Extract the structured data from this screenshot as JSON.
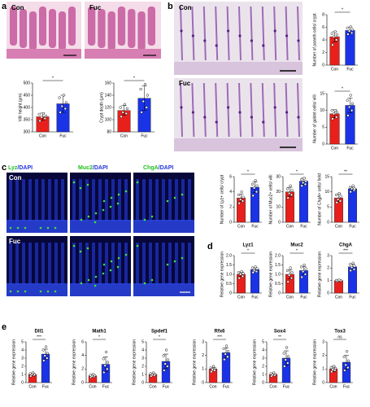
{
  "panels": {
    "letters": [
      "a",
      "b",
      "c",
      "d",
      "e"
    ],
    "a_images": [
      "Con",
      "Fuc"
    ],
    "b_images": [
      "Con",
      "Fuc"
    ],
    "c_headers": [
      {
        "stain": "Lyz",
        "counter": "/DAPI"
      },
      {
        "stain": "Muc2",
        "counter": "/DAPI"
      },
      {
        "stain": "ChgA",
        "counter": "/DAPI"
      }
    ],
    "c_rows": [
      "Con",
      "Fuc"
    ]
  },
  "chart_data": [
    {
      "type": "bar",
      "ylabel": "Villi height (μm)",
      "categories": [
        "Con",
        "Fuc"
      ],
      "values": [
        362,
        415
      ],
      "errors": [
        15,
        35
      ],
      "points": [
        [
          345,
          355,
          360,
          365,
          372,
          375
        ],
        [
          380,
          395,
          405,
          420,
          440,
          450
        ]
      ],
      "colors": [
        "#e8201c",
        "#1a33e6"
      ],
      "ylim": [
        300,
        500
      ],
      "yticks": [
        300,
        350,
        400,
        450,
        500
      ],
      "annotation": "*"
    },
    {
      "type": "bar",
      "ylabel": "Crypt depth (μm)",
      "categories": [
        "Con",
        "Fuc"
      ],
      "values": [
        115,
        135
      ],
      "errors": [
        8,
        20
      ],
      "points": [
        [
          105,
          110,
          112,
          118,
          120,
          125
        ],
        [
          112,
          120,
          130,
          140,
          150,
          158
        ]
      ],
      "colors": [
        "#e8201c",
        "#1a33e6"
      ],
      "ylim": [
        80,
        160
      ],
      "yticks": [
        80,
        100,
        120,
        140,
        160
      ],
      "annotation": "*"
    },
    {
      "type": "bar",
      "ylabel": "Number of paneth cells/ crypt",
      "categories": [
        "Con",
        "Fuc"
      ],
      "values": [
        4.5,
        5.5
      ],
      "errors": [
        0.8,
        0.5
      ],
      "points": [
        [
          3.2,
          4,
          4.5,
          4.8,
          5,
          5.3
        ],
        [
          4.9,
          5.1,
          5.4,
          5.6,
          5.9,
          6.1
        ]
      ],
      "colors": [
        "#e8201c",
        "#1a33e6"
      ],
      "ylim": [
        0,
        8
      ],
      "yticks": [
        0,
        2,
        4,
        6,
        8
      ],
      "annotation": "*"
    },
    {
      "type": "bar",
      "ylabel": "Number of goblet cells/ villi",
      "categories": [
        "Con",
        "Fuc"
      ],
      "values": [
        9,
        11.5
      ],
      "errors": [
        1.2,
        2.2
      ],
      "points": [
        [
          7.5,
          8,
          9,
          9.5,
          10,
          10
        ],
        [
          8.5,
          10,
          11,
          12,
          13,
          14.5
        ]
      ],
      "colors": [
        "#e8201c",
        "#1a33e6"
      ],
      "ylim": [
        0,
        15
      ],
      "yticks": [
        0,
        5,
        10,
        15
      ],
      "annotation": "*"
    },
    {
      "type": "bar",
      "ylabel": "Number of Lyz+ cells/ crypt",
      "categories": [
        "Con",
        "Fuc"
      ],
      "values": [
        3.2,
        4.6
      ],
      "errors": [
        0.5,
        0.7
      ],
      "points": [
        [
          2.5,
          2.8,
          3,
          3.3,
          3.6,
          4
        ],
        [
          3.5,
          4,
          4.5,
          4.8,
          5,
          5.5
        ]
      ],
      "colors": [
        "#e8201c",
        "#1a33e6"
      ],
      "ylim": [
        0,
        6
      ],
      "yticks": [
        0,
        2,
        4,
        6
      ],
      "annotation": "*"
    },
    {
      "type": "bar",
      "ylabel": "Number of Muc2+ cells/ villi",
      "categories": [
        "Con",
        "Fuc"
      ],
      "values": [
        20,
        27
      ],
      "errors": [
        3,
        2
      ],
      "points": [
        [
          16,
          18,
          19,
          21,
          22,
          24
        ],
        [
          24,
          25,
          26,
          27,
          28,
          29
        ]
      ],
      "colors": [
        "#e8201c",
        "#1a33e6"
      ],
      "ylim": [
        0,
        30
      ],
      "yticks": [
        0,
        10,
        20,
        30
      ],
      "annotation": "*"
    },
    {
      "type": "bar",
      "ylabel": "Number of ChgA+ cells/ field",
      "categories": [
        "Con",
        "Fuc"
      ],
      "values": [
        8,
        11
      ],
      "errors": [
        1.2,
        0.7
      ],
      "points": [
        [
          6.5,
          7,
          7.5,
          8.5,
          9,
          9.5
        ],
        [
          10,
          10.5,
          11,
          11,
          11.5,
          12
        ]
      ],
      "colors": [
        "#e8201c",
        "#1a33e6"
      ],
      "ylim": [
        0,
        15
      ],
      "yticks": [
        0,
        5,
        10,
        15
      ],
      "annotation": "**"
    },
    {
      "type": "bar",
      "title": "Lyz1",
      "ylabel": "Relative gene expression",
      "categories": [
        "Con",
        "Fuc"
      ],
      "values": [
        1.0,
        1.25
      ],
      "errors": [
        0.12,
        0.1
      ],
      "points": [
        [
          0.8,
          0.9,
          1,
          1.05,
          1.1,
          1.15
        ],
        [
          1.1,
          1.15,
          1.2,
          1.3,
          1.35,
          1.4
        ]
      ],
      "colors": [
        "#e8201c",
        "#1a33e6"
      ],
      "ylim": [
        0,
        2
      ],
      "yticks": [
        0,
        0.5,
        {
          "value": 1,
          "label": "1.0"
        },
        1.5,
        {
          "value": 2,
          "label": "2.0"
        }
      ],
      "annotation": "*"
    },
    {
      "type": "bar",
      "title": "Muc2",
      "ylabel": "Relative gene expression",
      "categories": [
        "Con",
        "Fuc"
      ],
      "values": [
        1.0,
        1.2
      ],
      "errors": [
        0.25,
        0.22
      ],
      "points": [
        [
          0.6,
          0.8,
          0.95,
          1.1,
          1.2,
          1.35
        ],
        [
          0.85,
          1,
          1.15,
          1.3,
          1.4,
          1.5
        ]
      ],
      "colors": [
        "#e8201c",
        "#1a33e6"
      ],
      "ylim": [
        0,
        2
      ],
      "yticks": [
        0,
        0.5,
        {
          "value": 1,
          "label": "1.0"
        },
        1.5,
        {
          "value": 2,
          "label": "2.0"
        }
      ],
      "annotation": "*"
    },
    {
      "type": "bar",
      "title": "ChgA",
      "ylabel": "Relative gene expression",
      "categories": [
        "Con",
        "Fuc"
      ],
      "values": [
        1.0,
        2.1
      ],
      "errors": [
        0.04,
        0.2
      ],
      "points": [
        [
          0.95,
          0.98,
          1,
          1,
          1.02,
          1.05
        ],
        [
          1.8,
          1.9,
          2.05,
          2.15,
          2.3,
          2.4
        ]
      ],
      "colors": [
        "#e8201c",
        "#1a33e6"
      ],
      "ylim": [
        0,
        3
      ],
      "yticks": [
        0,
        1,
        2,
        3
      ],
      "annotation": "***"
    },
    {
      "type": "bar",
      "title": "Dll1",
      "ylabel": "Relative gene expression",
      "categories": [
        "Con",
        "Fuc"
      ],
      "values": [
        1.0,
        3.5
      ],
      "errors": [
        0.15,
        0.6
      ],
      "points": [
        [
          0.8,
          0.9,
          1,
          1,
          1.1,
          1.2
        ],
        [
          2.7,
          3,
          3.3,
          3.6,
          4,
          4.4
        ]
      ],
      "colors": [
        "#e8201c",
        "#1a33e6"
      ],
      "ylim": [
        0,
        5
      ],
      "yticks": [
        0,
        1,
        2,
        3,
        4,
        5
      ],
      "annotation": "***"
    },
    {
      "type": "bar",
      "title": "Math1",
      "ylabel": "Relative gene expression",
      "categories": [
        "Con",
        "Fuc"
      ],
      "values": [
        1.0,
        2.7
      ],
      "errors": [
        0.2,
        1.1
      ],
      "points": [
        [
          0.8,
          0.9,
          0.95,
          1.05,
          1.1,
          1.2
        ],
        [
          1.5,
          2,
          2.5,
          3,
          3.5,
          4.5
        ]
      ],
      "colors": [
        "#e8201c",
        "#1a33e6"
      ],
      "ylim": [
        0,
        6
      ],
      "yticks": [
        0,
        2,
        4,
        6
      ],
      "annotation": "*"
    },
    {
      "type": "bar",
      "title": "Spdef1",
      "ylabel": "Relative gene expression",
      "categories": [
        "Con",
        "Fuc"
      ],
      "values": [
        1.0,
        2.6
      ],
      "errors": [
        0.15,
        0.9
      ],
      "points": [
        [
          0.8,
          0.9,
          0.95,
          1.05,
          1.1,
          1.2
        ],
        [
          1.5,
          2,
          2.3,
          2.8,
          3.3,
          4
        ]
      ],
      "colors": [
        "#e8201c",
        "#1a33e6"
      ],
      "ylim": [
        0,
        5
      ],
      "yticks": [
        0,
        1,
        2,
        3,
        4,
        5
      ],
      "annotation": "*"
    },
    {
      "type": "bar",
      "title": "Rfx6",
      "ylabel": "Relative gene expression",
      "categories": [
        "Con",
        "Fuc"
      ],
      "values": [
        1.0,
        2.2
      ],
      "errors": [
        0.12,
        0.35
      ],
      "points": [
        [
          0.8,
          0.9,
          0.95,
          1.05,
          1.1,
          1.2
        ],
        [
          1.7,
          1.9,
          2.1,
          2.3,
          2.5,
          2.7
        ]
      ],
      "colors": [
        "#e8201c",
        "#1a33e6"
      ],
      "ylim": [
        0,
        3
      ],
      "yticks": [
        0,
        1,
        2,
        3
      ],
      "annotation": "***"
    },
    {
      "type": "bar",
      "title": "Sox4",
      "ylabel": "Relative gene expression",
      "categories": [
        "Con",
        "Fuc"
      ],
      "values": [
        1.0,
        3.0
      ],
      "errors": [
        0.15,
        0.9
      ],
      "points": [
        [
          0.8,
          0.9,
          0.95,
          1.05,
          1.1,
          1.2
        ],
        [
          2,
          2.4,
          2.8,
          3.2,
          3.6,
          4.3
        ]
      ],
      "colors": [
        "#e8201c",
        "#1a33e6"
      ],
      "ylim": [
        0,
        5
      ],
      "yticks": [
        0,
        1,
        2,
        3,
        4,
        5
      ],
      "annotation": "**"
    },
    {
      "type": "bar",
      "title": "Tox3",
      "ylabel": "Relative gene expression",
      "categories": [
        "Con",
        "Fuc"
      ],
      "values": [
        1.0,
        1.5
      ],
      "errors": [
        0.2,
        0.5
      ],
      "points": [
        [
          0.8,
          0.9,
          0.95,
          1.05,
          1.1,
          1.2
        ],
        [
          0.9,
          1.1,
          1.3,
          1.6,
          1.9,
          2.3
        ]
      ],
      "colors": [
        "#e8201c",
        "#1a33e6"
      ],
      "ylim": [
        0,
        3
      ],
      "yticks": [
        0,
        1,
        2,
        3
      ],
      "annotation": "ns"
    }
  ]
}
